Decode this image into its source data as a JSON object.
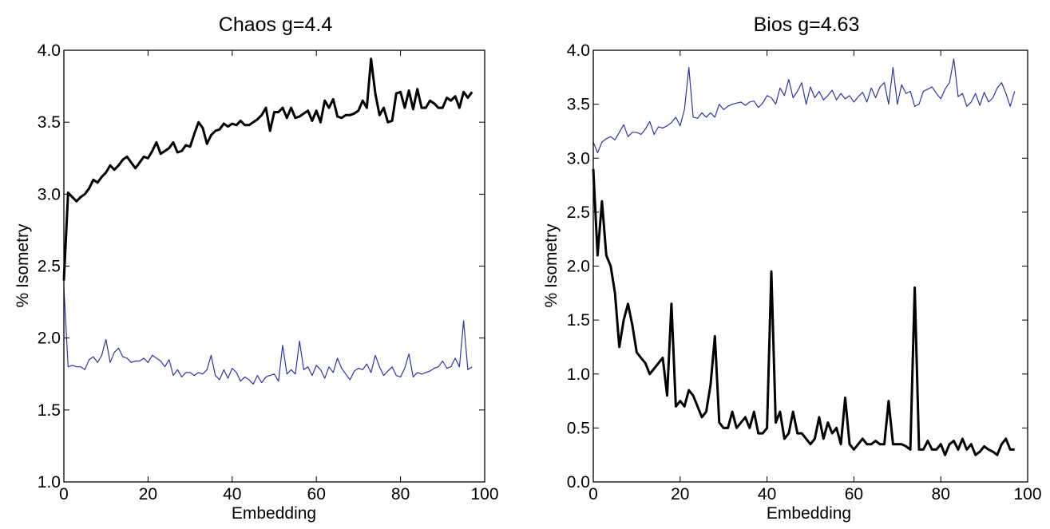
{
  "chart_data": [
    {
      "type": "line",
      "title": "Chaos g=4.4",
      "xlabel": "Embedding",
      "ylabel": "% Isometry",
      "xlim": [
        0,
        100
      ],
      "ylim": [
        1.0,
        4.0
      ],
      "xticks": [
        "0",
        "20",
        "40",
        "60",
        "80",
        "100"
      ],
      "yticks": [
        "1.0",
        "1.5",
        "2.0",
        "2.5",
        "3.0",
        "3.5",
        "4.0"
      ],
      "grid": false,
      "series": [
        {
          "color": "#000000",
          "style": "thick",
          "x": [
            0,
            1,
            2,
            3,
            4,
            5,
            6,
            7,
            8,
            9,
            10,
            11,
            12,
            13,
            14,
            15,
            16,
            17,
            18,
            19,
            20,
            21,
            22,
            23,
            24,
            25,
            26,
            27,
            28,
            29,
            30,
            31,
            32,
            33,
            34,
            35,
            36,
            37,
            38,
            39,
            40,
            41,
            42,
            43,
            44,
            45,
            46,
            47,
            48,
            49,
            50,
            51,
            52,
            53,
            54,
            55,
            56,
            57,
            58,
            59,
            60,
            61,
            62,
            63,
            64,
            65,
            66,
            67,
            68,
            69,
            70,
            71,
            72,
            73,
            74,
            75,
            76,
            77,
            78,
            79,
            80,
            81,
            82,
            83,
            84,
            85,
            86,
            87,
            88,
            89,
            90,
            91,
            92,
            93,
            94,
            95,
            96,
            97
          ],
          "y": [
            2.4,
            3.01,
            2.98,
            2.95,
            2.98,
            3.0,
            3.04,
            3.1,
            3.08,
            3.12,
            3.15,
            3.2,
            3.17,
            3.2,
            3.24,
            3.26,
            3.22,
            3.18,
            3.22,
            3.26,
            3.25,
            3.3,
            3.36,
            3.28,
            3.3,
            3.32,
            3.36,
            3.29,
            3.3,
            3.34,
            3.33,
            3.42,
            3.5,
            3.46,
            3.35,
            3.41,
            3.44,
            3.45,
            3.49,
            3.47,
            3.49,
            3.48,
            3.51,
            3.48,
            3.48,
            3.5,
            3.52,
            3.55,
            3.6,
            3.44,
            3.57,
            3.57,
            3.6,
            3.53,
            3.6,
            3.53,
            3.54,
            3.56,
            3.58,
            3.51,
            3.58,
            3.5,
            3.65,
            3.6,
            3.66,
            3.54,
            3.53,
            3.55,
            3.55,
            3.56,
            3.58,
            3.65,
            3.6,
            3.94,
            3.7,
            3.55,
            3.6,
            3.5,
            3.51,
            3.7,
            3.71,
            3.6,
            3.72,
            3.59,
            3.73,
            3.6,
            3.6,
            3.65,
            3.63,
            3.6,
            3.6,
            3.67,
            3.65,
            3.68,
            3.6,
            3.71,
            3.67,
            3.71
          ]
        },
        {
          "color": "#2b35a8",
          "style": "thin",
          "x": [
            0,
            1,
            2,
            3,
            4,
            5,
            6,
            7,
            8,
            9,
            10,
            11,
            12,
            13,
            14,
            15,
            16,
            17,
            18,
            19,
            20,
            21,
            22,
            23,
            24,
            25,
            26,
            27,
            28,
            29,
            30,
            31,
            32,
            33,
            34,
            35,
            36,
            37,
            38,
            39,
            40,
            41,
            42,
            43,
            44,
            45,
            46,
            47,
            48,
            49,
            50,
            51,
            52,
            53,
            54,
            55,
            56,
            57,
            58,
            59,
            60,
            61,
            62,
            63,
            64,
            65,
            66,
            67,
            68,
            69,
            70,
            71,
            72,
            73,
            74,
            75,
            76,
            77,
            78,
            79,
            80,
            81,
            82,
            83,
            84,
            85,
            86,
            87,
            88,
            89,
            90,
            91,
            92,
            93,
            94,
            95,
            96,
            97
          ],
          "y": [
            2.35,
            1.8,
            1.81,
            1.8,
            1.8,
            1.78,
            1.85,
            1.87,
            1.83,
            1.88,
            1.99,
            1.83,
            1.9,
            1.93,
            1.87,
            1.86,
            1.83,
            1.84,
            1.84,
            1.86,
            1.83,
            1.88,
            1.86,
            1.84,
            1.8,
            1.85,
            1.74,
            1.78,
            1.73,
            1.76,
            1.76,
            1.74,
            1.76,
            1.75,
            1.78,
            1.88,
            1.74,
            1.71,
            1.78,
            1.72,
            1.79,
            1.76,
            1.7,
            1.73,
            1.71,
            1.68,
            1.74,
            1.69,
            1.73,
            1.74,
            1.75,
            1.7,
            1.95,
            1.75,
            1.78,
            1.75,
            1.98,
            1.78,
            1.8,
            1.74,
            1.81,
            1.78,
            1.72,
            1.8,
            1.76,
            1.86,
            1.79,
            1.75,
            1.71,
            1.77,
            1.79,
            1.78,
            1.82,
            1.76,
            1.88,
            1.8,
            1.74,
            1.77,
            1.8,
            1.74,
            1.73,
            1.79,
            1.89,
            1.73,
            1.76,
            1.75,
            1.76,
            1.77,
            1.79,
            1.8,
            1.84,
            1.79,
            1.8,
            1.86,
            1.8,
            2.12,
            1.78,
            1.8
          ]
        }
      ]
    },
    {
      "type": "line",
      "title": "Bios g=4.63",
      "xlabel": "Embedding",
      "ylabel": "% Isometry",
      "xlim": [
        0,
        100
      ],
      "ylim": [
        0.0,
        4.0
      ],
      "xticks": [
        "0",
        "20",
        "40",
        "60",
        "80",
        "100"
      ],
      "yticks": [
        "0.0",
        "0.5",
        "1.0",
        "1.5",
        "2.0",
        "2.5",
        "3.0",
        "3.5",
        "4.0"
      ],
      "grid": false,
      "series": [
        {
          "color": "#2b35a8",
          "style": "thin",
          "x": [
            0,
            1,
            2,
            3,
            4,
            5,
            6,
            7,
            8,
            9,
            10,
            11,
            12,
            13,
            14,
            15,
            16,
            17,
            18,
            19,
            20,
            21,
            22,
            23,
            24,
            25,
            26,
            27,
            28,
            29,
            30,
            31,
            32,
            33,
            34,
            35,
            36,
            37,
            38,
            39,
            40,
            41,
            42,
            43,
            44,
            45,
            46,
            47,
            48,
            49,
            50,
            51,
            52,
            53,
            54,
            55,
            56,
            57,
            58,
            59,
            60,
            61,
            62,
            63,
            64,
            65,
            66,
            67,
            68,
            69,
            70,
            71,
            72,
            73,
            74,
            75,
            76,
            77,
            78,
            79,
            80,
            81,
            82,
            83,
            84,
            85,
            86,
            87,
            88,
            89,
            90,
            91,
            92,
            93,
            94,
            95,
            96,
            97
          ],
          "y": [
            3.15,
            3.05,
            3.15,
            3.18,
            3.2,
            3.17,
            3.24,
            3.31,
            3.2,
            3.24,
            3.24,
            3.22,
            3.27,
            3.34,
            3.22,
            3.29,
            3.28,
            3.3,
            3.33,
            3.38,
            3.3,
            3.45,
            3.84,
            3.38,
            3.37,
            3.42,
            3.38,
            3.42,
            3.38,
            3.5,
            3.45,
            3.48,
            3.5,
            3.51,
            3.52,
            3.49,
            3.52,
            3.53,
            3.47,
            3.51,
            3.58,
            3.56,
            3.5,
            3.65,
            3.58,
            3.73,
            3.56,
            3.62,
            3.7,
            3.5,
            3.66,
            3.56,
            3.62,
            3.54,
            3.58,
            3.63,
            3.54,
            3.6,
            3.55,
            3.58,
            3.52,
            3.57,
            3.61,
            3.52,
            3.65,
            3.56,
            3.66,
            3.7,
            3.5,
            3.84,
            3.5,
            3.68,
            3.6,
            3.62,
            3.48,
            3.5,
            3.62,
            3.64,
            3.66,
            3.6,
            3.55,
            3.64,
            3.7,
            3.92,
            3.57,
            3.6,
            3.48,
            3.52,
            3.6,
            3.49,
            3.61,
            3.52,
            3.56,
            3.65,
            3.7,
            3.6,
            3.48,
            3.62
          ]
        },
        {
          "color": "#000000",
          "style": "thick",
          "x": [
            0,
            1,
            2,
            3,
            4,
            5,
            6,
            7,
            8,
            9,
            10,
            11,
            12,
            13,
            14,
            15,
            16,
            17,
            18,
            19,
            20,
            21,
            22,
            23,
            24,
            25,
            26,
            27,
            28,
            29,
            30,
            31,
            32,
            33,
            34,
            35,
            36,
            37,
            38,
            39,
            40,
            41,
            42,
            43,
            44,
            45,
            46,
            47,
            48,
            49,
            50,
            51,
            52,
            53,
            54,
            55,
            56,
            57,
            58,
            59,
            60,
            61,
            62,
            63,
            64,
            65,
            66,
            67,
            68,
            69,
            70,
            71,
            72,
            73,
            74,
            75,
            76,
            77,
            78,
            79,
            80,
            81,
            82,
            83,
            84,
            85,
            86,
            87,
            88,
            89,
            90,
            91,
            92,
            93,
            94,
            95,
            96,
            97
          ],
          "y": [
            2.9,
            2.1,
            2.6,
            2.1,
            2.0,
            1.75,
            1.25,
            1.5,
            1.65,
            1.45,
            1.2,
            1.15,
            1.1,
            1.0,
            1.05,
            1.1,
            1.15,
            0.8,
            1.65,
            0.7,
            0.75,
            0.7,
            0.85,
            0.8,
            0.7,
            0.6,
            0.65,
            0.9,
            1.35,
            0.55,
            0.5,
            0.5,
            0.65,
            0.5,
            0.55,
            0.6,
            0.5,
            0.65,
            0.45,
            0.45,
            0.5,
            1.95,
            0.55,
            0.65,
            0.4,
            0.45,
            0.65,
            0.45,
            0.45,
            0.4,
            0.35,
            0.4,
            0.6,
            0.4,
            0.55,
            0.45,
            0.5,
            0.35,
            0.78,
            0.35,
            0.3,
            0.35,
            0.4,
            0.35,
            0.35,
            0.38,
            0.35,
            0.35,
            0.75,
            0.35,
            0.35,
            0.35,
            0.33,
            0.3,
            1.8,
            0.3,
            0.3,
            0.38,
            0.3,
            0.3,
            0.35,
            0.25,
            0.35,
            0.38,
            0.3,
            0.4,
            0.3,
            0.35,
            0.25,
            0.28,
            0.33,
            0.3,
            0.28,
            0.25,
            0.35,
            0.4,
            0.3,
            0.3
          ]
        }
      ]
    }
  ]
}
